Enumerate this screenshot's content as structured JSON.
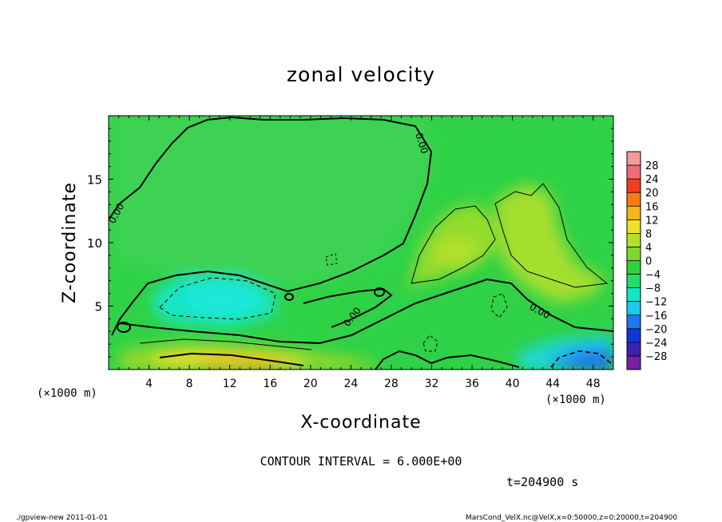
{
  "chart_data": {
    "type": "heatmap",
    "title": "zonal velocity",
    "xlabel": "X-coordinate",
    "ylabel": "Z-coordinate",
    "x_unit_note": "(×1000 m)",
    "y_unit_note": "(×1000 m)",
    "xlim": [
      0,
      50
    ],
    "ylim": [
      0,
      20
    ],
    "x_ticks": [
      4,
      8,
      12,
      16,
      20,
      24,
      28,
      32,
      36,
      40,
      44,
      48
    ],
    "x_tick_labels": [
      "4",
      "8",
      "12",
      "16",
      "20",
      "24",
      "28",
      "32",
      "36",
      "40",
      "44",
      "48"
    ],
    "y_ticks": [
      5,
      10,
      15
    ],
    "y_tick_labels": [
      "5",
      "10",
      "15"
    ],
    "contour_interval_text": "CONTOUR INTERVAL = 6.000E+00",
    "time_text": "t=204900 s",
    "zero_contour_label": "0.00",
    "colorbar": {
      "levels": [
        -28,
        -24,
        -20,
        -16,
        -12,
        -8,
        -4,
        0,
        4,
        8,
        12,
        16,
        20,
        24,
        28
      ],
      "labels": [
        "28",
        "24",
        "20",
        "16",
        "12",
        "8",
        "4",
        "0",
        "−4",
        "−8",
        "−12",
        "−16",
        "−20",
        "−24",
        "−28"
      ],
      "colors": [
        "#7a1fa0",
        "#3a22b4",
        "#1038d8",
        "#1e78f0",
        "#1ec8f0",
        "#16e6c4",
        "#22dc6e",
        "#2ed23c",
        "#7cd82c",
        "#b4e02c",
        "#f0e02a",
        "#f8b41a",
        "#f87c14",
        "#f23c20",
        "#f46a78",
        "#f59a9a"
      ]
    },
    "field_samples": [
      {
        "x": 4,
        "z": 17,
        "value": 1
      },
      {
        "x": 15,
        "z": 12,
        "value": 2
      },
      {
        "x": 11,
        "z": 6,
        "value": -9
      },
      {
        "x": 13,
        "z": 1.5,
        "value": 12
      },
      {
        "x": 16,
        "z": 0.6,
        "value": 18
      },
      {
        "x": 33,
        "z": 9,
        "value": 8
      },
      {
        "x": 44,
        "z": 12,
        "value": 6
      },
      {
        "x": 46,
        "z": 1.5,
        "value": -10
      },
      {
        "x": 47,
        "z": 0.5,
        "value": -16
      },
      {
        "x": 28,
        "z": 15,
        "value": 1
      },
      {
        "x": 25,
        "z": 3,
        "value": -2
      }
    ]
  },
  "footer": {
    "left": "./gpview-new  2011-01-01",
    "right": "MarsCond_VelX.nc@VelX,x=0:50000,z=0:20000,t=204900"
  }
}
